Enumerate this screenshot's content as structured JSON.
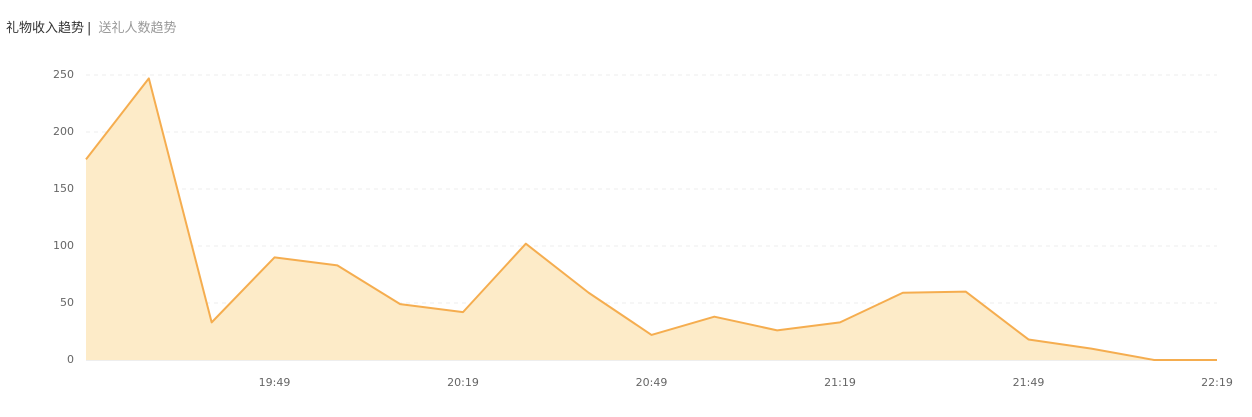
{
  "tabs": {
    "active": "礼物收入趋势",
    "separator": "|",
    "inactive": "送礼人数趋势"
  },
  "chart_data": {
    "type": "area",
    "categories": [
      null,
      null,
      null,
      "19:49",
      null,
      null,
      "20:19",
      null,
      null,
      "20:49",
      null,
      null,
      "21:19",
      null,
      null,
      "21:49",
      null,
      null,
      "22:19"
    ],
    "values": [
      176,
      247,
      33,
      90,
      83,
      49,
      42,
      102,
      59,
      22,
      38,
      26,
      33,
      59,
      60,
      18,
      10,
      0,
      0
    ],
    "color": "#f5ad4f",
    "fill": "#fdebc8",
    "ylim": [
      0,
      250
    ],
    "yticks": [
      0,
      50,
      100,
      150,
      200,
      250
    ],
    "grid": true
  }
}
